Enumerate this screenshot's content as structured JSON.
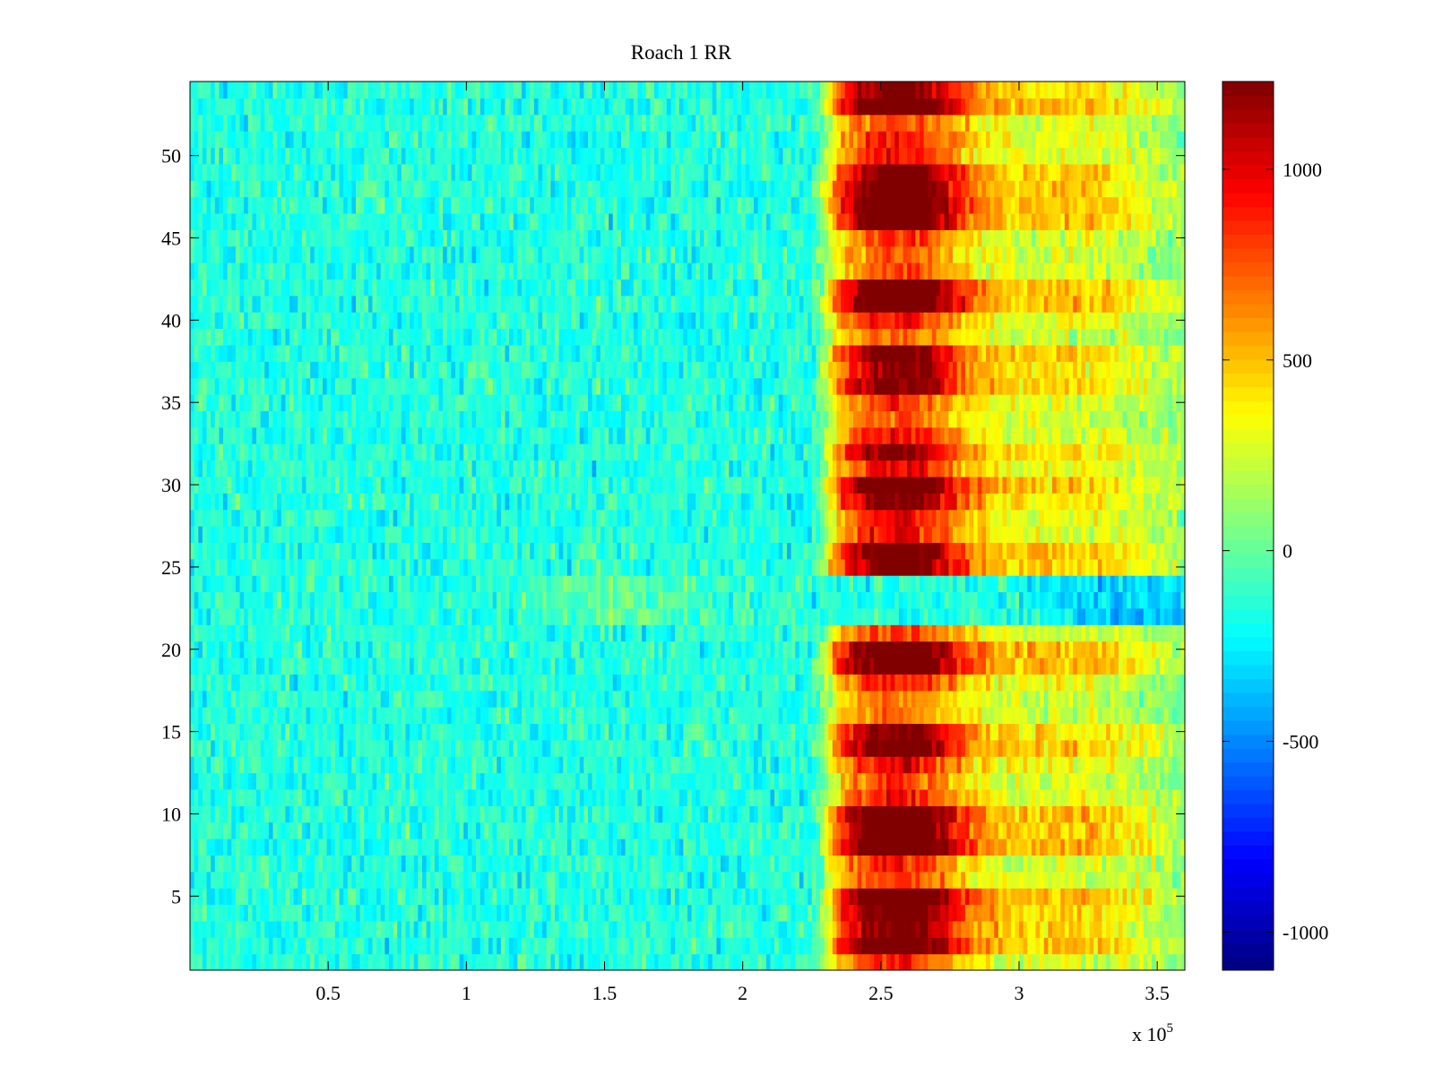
{
  "chart_data": {
    "type": "heatmap",
    "title": "Roach 1 RR",
    "xlabel": "",
    "ylabel": "",
    "x_exponent_label": {
      "base": "x 10",
      "exponent": "5"
    },
    "xlim": [
      0,
      3.6
    ],
    "ylim": [
      0.5,
      54.5
    ],
    "rows": 54,
    "x_ticks": [
      {
        "value": 0.5,
        "label": "0.5"
      },
      {
        "value": 1,
        "label": "1"
      },
      {
        "value": 1.5,
        "label": "1.5"
      },
      {
        "value": 2,
        "label": "2"
      },
      {
        "value": 2.5,
        "label": "2.5"
      },
      {
        "value": 3,
        "label": "3"
      },
      {
        "value": 3.5,
        "label": "3.5"
      }
    ],
    "y_ticks": [
      {
        "value": 5,
        "label": "5"
      },
      {
        "value": 10,
        "label": "10"
      },
      {
        "value": 15,
        "label": "15"
      },
      {
        "value": 20,
        "label": "20"
      },
      {
        "value": 25,
        "label": "25"
      },
      {
        "value": 30,
        "label": "30"
      },
      {
        "value": 35,
        "label": "35"
      },
      {
        "value": 40,
        "label": "40"
      },
      {
        "value": 45,
        "label": "45"
      },
      {
        "value": 50,
        "label": "50"
      }
    ],
    "colorbar": {
      "colormap": "jet",
      "range": [
        -1100,
        1230
      ],
      "ticks": [
        {
          "value": 1000,
          "label": "1000"
        },
        {
          "value": 500,
          "label": "500"
        },
        {
          "value": 0,
          "label": "0"
        },
        {
          "value": -500,
          "label": "-500"
        },
        {
          "value": -1000,
          "label": "-1000"
        }
      ]
    },
    "pattern": {
      "baseline_level": -150,
      "response_window_x": [
        2.3,
        2.95
      ],
      "response_peak_x": 2.55,
      "low_response_rows": [
        22,
        23,
        24
      ],
      "strong_rows": [
        2,
        3,
        4,
        5,
        8,
        9,
        10,
        14,
        15,
        19,
        20,
        25,
        26,
        29,
        30,
        32,
        36,
        37,
        38,
        41,
        42,
        46,
        47,
        48,
        49,
        53,
        54
      ]
    }
  }
}
